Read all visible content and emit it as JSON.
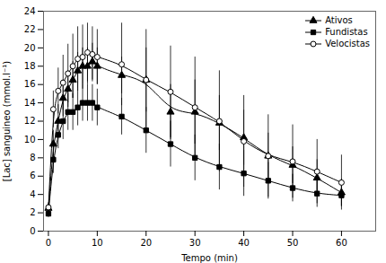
{
  "chart_data": {
    "type": "scatter",
    "xlabel": "Tempo (min)",
    "ylabel": "[Lac] sanguineo (mmol.l⁻¹)",
    "xlim": [
      -1,
      67
    ],
    "ylim": [
      0,
      24
    ],
    "xticks": [
      0,
      10,
      20,
      30,
      40,
      50,
      60
    ],
    "yticks": [
      0,
      2,
      4,
      6,
      8,
      10,
      12,
      14,
      16,
      18,
      20,
      22,
      24
    ],
    "grid": false,
    "legend": "upper right",
    "x": [
      0,
      1,
      2,
      3,
      4,
      5,
      6,
      7,
      8,
      9,
      10,
      15,
      20,
      25,
      30,
      35,
      40,
      45,
      50,
      55,
      60
    ],
    "series": [
      {
        "name": "Ativos",
        "color": "#000000",
        "marker": "triangle",
        "line_style": "solid",
        "values": [
          2.5,
          9.5,
          12.0,
          14.5,
          15.5,
          16.5,
          17.5,
          18.0,
          18.0,
          18.5,
          18.0,
          17.0,
          16.5,
          13.0,
          13.0,
          11.8,
          10.2,
          8.2,
          7.2,
          5.8,
          4.2
        ],
        "errors": [
          0.4,
          1.5,
          1.8,
          2.0,
          2.0,
          2.0,
          2.0,
          2.0,
          2.0,
          2.0,
          2.0,
          2.0,
          3.5,
          3.0,
          3.5,
          3.0,
          3.0,
          2.5,
          2.0,
          2.0,
          1.5
        ]
      },
      {
        "name": "Fundistas",
        "color": "#000000",
        "marker": "square",
        "line_style": "solid",
        "values": [
          1.9,
          7.8,
          10.5,
          12.0,
          13.0,
          13.0,
          13.5,
          14.0,
          14.0,
          14.0,
          13.5,
          12.5,
          11.0,
          9.5,
          8.0,
          7.0,
          6.3,
          5.5,
          4.7,
          4.1,
          3.9
        ],
        "errors": [
          0.4,
          1.5,
          1.5,
          2.0,
          2.0,
          2.0,
          2.0,
          2.0,
          2.0,
          2.0,
          2.0,
          2.0,
          2.5,
          2.5,
          2.5,
          2.5,
          2.5,
          2.0,
          1.5,
          1.5,
          1.2
        ]
      },
      {
        "name": "Velocistas",
        "color": "#000000",
        "marker": "circle_open",
        "line_style": "solid",
        "values": [
          2.6,
          13.3,
          15.3,
          16.2,
          17.2,
          18.0,
          18.8,
          19.0,
          19.5,
          19.3,
          19.0,
          18.2,
          16.5,
          15.2,
          13.5,
          12.0,
          9.8,
          8.2,
          7.6,
          6.5,
          5.3
        ],
        "errors": [
          0.5,
          2.0,
          2.5,
          3.0,
          3.2,
          3.5,
          3.5,
          3.5,
          3.2,
          3.0,
          3.0,
          4.5,
          5.5,
          5.0,
          5.5,
          5.5,
          5.0,
          4.5,
          4.0,
          3.5,
          3.0
        ]
      }
    ]
  }
}
